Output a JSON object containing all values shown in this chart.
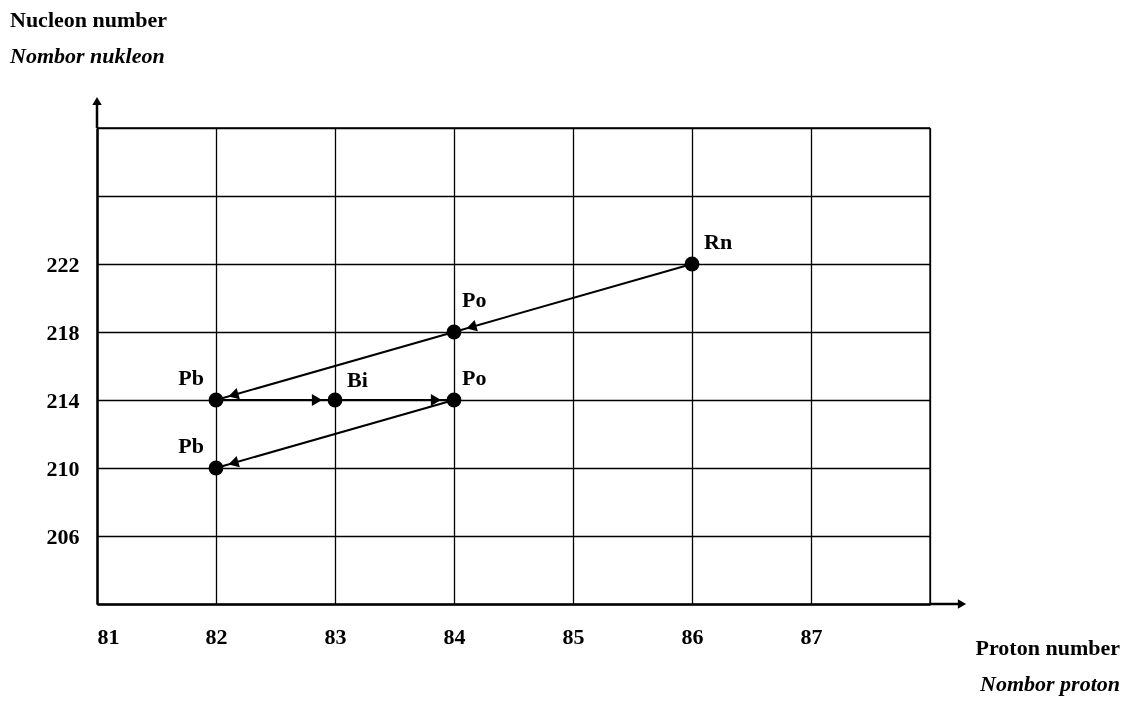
{
  "chart_data": {
    "type": "line",
    "xlabel": "Proton number\nNombor proton",
    "ylabel": "Nucleon number\nNombor nukleon",
    "x": [
      86,
      84,
      82,
      83,
      84,
      82
    ],
    "series": [
      {
        "color": "#000000",
        "values": [
          222,
          218,
          214,
          214,
          214,
          210
        ]
      }
    ],
    "marker": "circle",
    "xlim": [
      81,
      88
    ],
    "xticks": [
      81,
      82,
      83,
      84,
      85,
      86,
      87,
      {
        "value": 88,
        "label": null
      }
    ],
    "ylim": [
      202,
      230
    ],
    "yticks": [
      {
        "value": 202,
        "label": null
      },
      206,
      210,
      214,
      218,
      222,
      {
        "value": 226,
        "label": null
      },
      {
        "value": 230,
        "label": null
      }
    ],
    "grid": true,
    "annotations": [
      {
        "text": "Rn",
        "x": 86,
        "y": 222
      },
      {
        "text": "Po",
        "x": 84,
        "y": 218
      },
      {
        "text": "Pb",
        "x": 82,
        "y": 214
      },
      {
        "text": "Bi",
        "x": 83,
        "y": 214
      },
      {
        "text": "Po",
        "x": 84,
        "y": 214
      },
      {
        "text": "Pb",
        "x": 82,
        "y": 210
      }
    ]
  }
}
